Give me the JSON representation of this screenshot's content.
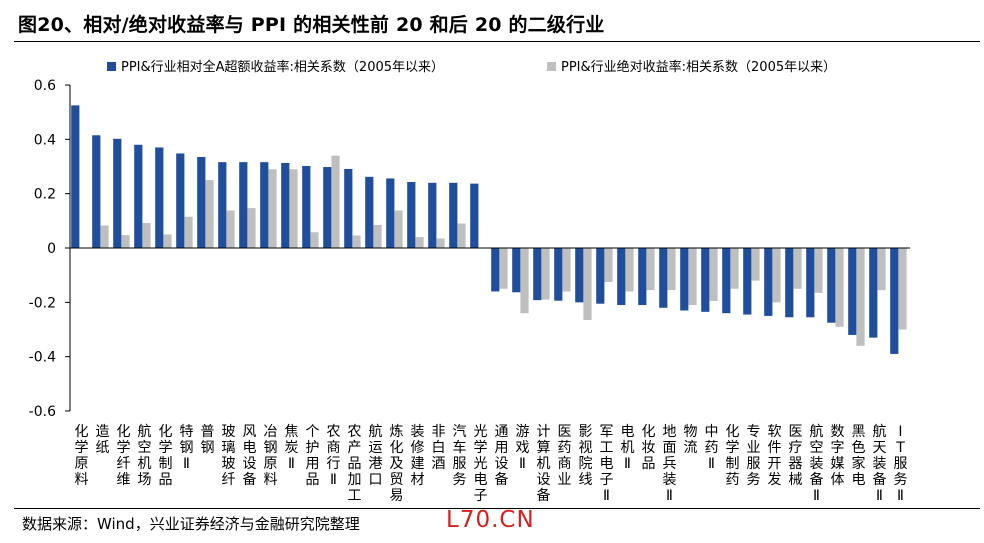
{
  "title": "图20、相对/绝对收益率与 PPI 的相关性前 20 和后 20 的二级行业",
  "source": "数据来源：Wind，兴业证券经济与金融研究院整理",
  "watermark": "L70.CN",
  "colors": {
    "series1": "#1f4e9c",
    "series2": "#bfbfbf",
    "axis": "#000000"
  },
  "chart_data": {
    "type": "bar",
    "ylim": [
      -0.6,
      0.6
    ],
    "yticks": [
      -0.6,
      -0.4,
      -0.2,
      0,
      0.2,
      0.4,
      0.6
    ],
    "ytick_labels": [
      "-0.6",
      "-0.4",
      "-0.2",
      "0",
      "0.2",
      "0.4",
      "0.6"
    ],
    "grid": false,
    "legend_position": "top",
    "categories": [
      "化学原料",
      "造纸",
      "化学纤维",
      "航空机场",
      "化学制品",
      "特钢Ⅱ",
      "普钢",
      "玻璃玻纤",
      "风电设备",
      "冶钢原料",
      "焦炭Ⅱ",
      "个护用品",
      "农商行Ⅱ",
      "农产品加工",
      "航运港口",
      "炼化及贸易",
      "装修建材",
      "非白酒",
      "汽车服务",
      "光学光电子",
      "通用设备",
      "游戏Ⅱ",
      "计算机设备",
      "医药商业",
      "影视院线",
      "军工电子Ⅱ",
      "电机Ⅱ",
      "化妆品",
      "地面兵装Ⅱ",
      "物流",
      "中药Ⅱ",
      "化学制药",
      "专业服务",
      "软件开发",
      "医疗器械",
      "航空装备Ⅱ",
      "数字媒体",
      "黑色家电",
      "航天装备Ⅱ",
      "IT服务Ⅱ"
    ],
    "series": [
      {
        "name": "PPI&行业相对全A超额收益率:相关系数（2005年以来）",
        "values": [
          0.525,
          0.415,
          0.402,
          0.38,
          0.37,
          0.348,
          0.335,
          0.316,
          0.316,
          0.316,
          0.313,
          0.302,
          0.298,
          0.291,
          0.262,
          0.256,
          0.243,
          0.24,
          0.24,
          0.237,
          -0.16,
          -0.163,
          -0.192,
          -0.194,
          -0.2,
          -0.205,
          -0.21,
          -0.21,
          -0.22,
          -0.23,
          -0.235,
          -0.24,
          -0.245,
          -0.25,
          -0.255,
          -0.255,
          -0.275,
          -0.32,
          -0.33,
          -0.39
        ]
      },
      {
        "name": "PPI&行业绝对收益率:相关系数（2005年以来）",
        "values": [
          0.0,
          0.083,
          0.048,
          0.092,
          0.05,
          0.115,
          0.25,
          0.138,
          0.147,
          0.29,
          0.29,
          0.058,
          0.34,
          0.046,
          0.085,
          0.138,
          0.04,
          0.035,
          0.09,
          0.0,
          -0.15,
          -0.24,
          -0.19,
          -0.16,
          -0.265,
          -0.125,
          -0.16,
          -0.155,
          -0.155,
          -0.21,
          -0.195,
          -0.15,
          -0.12,
          -0.2,
          -0.15,
          -0.165,
          -0.29,
          -0.36,
          -0.155,
          -0.3
        ]
      }
    ]
  }
}
